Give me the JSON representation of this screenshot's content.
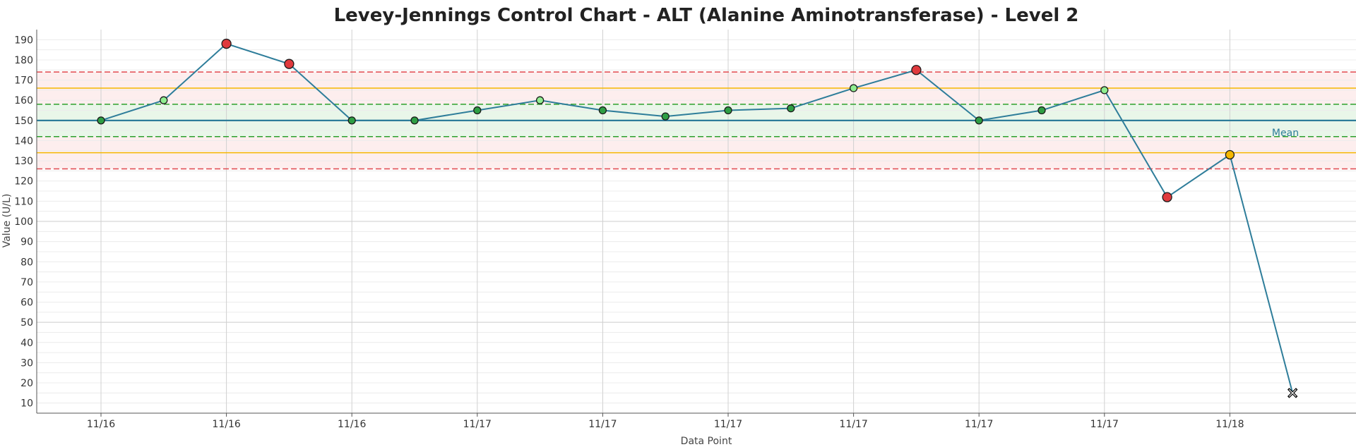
{
  "chart_data": {
    "type": "line",
    "title": "Levey-Jennings Control Chart - ALT (Alanine Aminotransferase) - Level 2",
    "xlabel": "Data Point",
    "ylabel": "Value (U/L)",
    "ylim": [
      5,
      195
    ],
    "y_ticks": [
      10,
      20,
      30,
      40,
      50,
      60,
      70,
      80,
      90,
      100,
      110,
      120,
      130,
      140,
      150,
      160,
      170,
      180,
      190
    ],
    "x_tick_labels": [
      "11/16",
      "11/16",
      "11/16",
      "11/17",
      "11/17",
      "11/17",
      "11/17",
      "11/17",
      "11/17",
      "11/18"
    ],
    "mean": 150,
    "mean_label": "Mean",
    "limits": {
      "plus_3sd": 174,
      "plus_2sd": 166,
      "plus_1sd": 158,
      "minus_1sd": 142,
      "minus_2sd": 134,
      "minus_3sd": 126
    },
    "values": [
      150,
      160,
      188,
      178,
      150,
      150,
      155,
      160,
      155,
      152,
      155,
      156,
      166,
      175,
      150,
      155,
      165,
      112,
      133,
      15
    ],
    "point_status": [
      "ok",
      "warn1",
      "reject",
      "reject",
      "ok",
      "ok",
      "ok",
      "warn1",
      "ok",
      "ok",
      "ok",
      "ok",
      "warn1",
      "reject",
      "ok",
      "ok",
      "warn1",
      "reject",
      "warn2",
      "excluded"
    ],
    "grid": true,
    "colors": {
      "line": "#2e7d9a",
      "mean": "#2e7d9a",
      "sd1": "#2ca02c",
      "sd2": "#f5b700",
      "sd3": "#e0484d",
      "ok": "#2e9e44",
      "warn1": "#90ee90",
      "warn2": "#f5b700",
      "reject": "#e03a3e",
      "excluded": "#000000",
      "band_inner": "#e9f6e9",
      "band_outer": "#fdeeee"
    }
  }
}
